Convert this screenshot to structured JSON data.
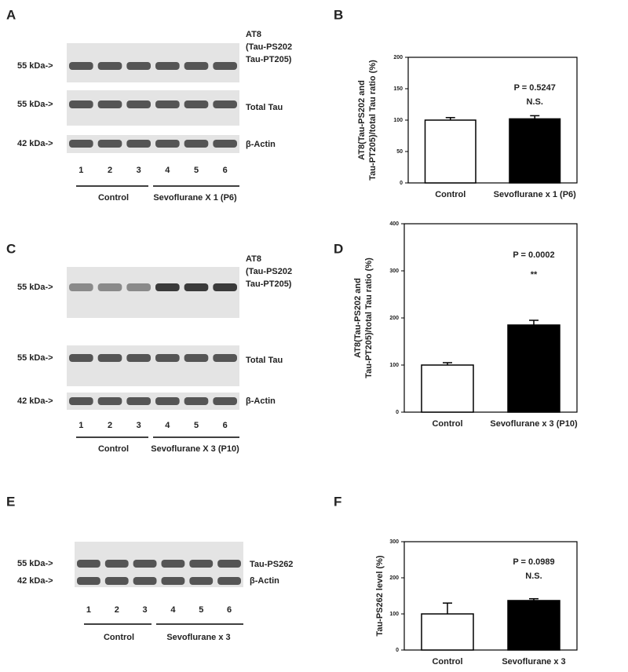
{
  "chart_data": [
    {
      "type": "bar",
      "panel": "B",
      "ylabel": [
        "AT8(Tau-PS202 and",
        "Tau-PT205)/total Tau ratio (%)"
      ],
      "categories": [
        "Control",
        "Sevoflurane x 1 (P6)"
      ],
      "values": [
        100,
        102
      ],
      "errors": [
        4,
        5
      ],
      "colors": [
        "#ffffff",
        "#000000"
      ],
      "ylim": [
        0,
        200
      ],
      "yticks": [
        0,
        50,
        100,
        150,
        200
      ],
      "annotations": [
        "P = 0.5247",
        "N.S."
      ]
    },
    {
      "type": "bar",
      "panel": "D",
      "ylabel": [
        "AT8(Tau-PS202 and",
        "Tau-PT205)/total Tau ratio (%)"
      ],
      "categories": [
        "Control",
        "Sevoflurane x 3 (P10)"
      ],
      "values": [
        100,
        185
      ],
      "errors": [
        5,
        10
      ],
      "colors": [
        "#ffffff",
        "#000000"
      ],
      "ylim": [
        0,
        400
      ],
      "yticks": [
        0,
        100,
        200,
        300,
        400
      ],
      "annotations": [
        "P = 0.0002",
        "**"
      ]
    },
    {
      "type": "bar",
      "panel": "F",
      "ylabel": [
        "Tau-PS262 level (%)"
      ],
      "categories": [
        "Control",
        "Sevoflurane x 3"
      ],
      "values": [
        100,
        137
      ],
      "errors": [
        30,
        5
      ],
      "colors": [
        "#ffffff",
        "#000000"
      ],
      "ylim": [
        0,
        300
      ],
      "yticks": [
        0,
        100,
        200,
        300
      ],
      "annotations": [
        "P = 0.0989",
        "N.S."
      ]
    }
  ],
  "blots": [
    {
      "panel": "A",
      "rows": [
        {
          "marker": "55 kDa->",
          "label": [
            "AT8",
            "(Tau-PS202",
            "Tau-PT205)"
          ]
        },
        {
          "marker": "55 kDa->",
          "label": [
            "Total Tau"
          ]
        },
        {
          "marker": "42 kDa->",
          "label": [
            "β-Actin"
          ]
        }
      ],
      "lanes": [
        "1",
        "2",
        "3",
        "4",
        "5",
        "6"
      ],
      "groups": [
        "Control",
        "Sevoflurane X 1 (P6)"
      ]
    },
    {
      "panel": "C",
      "rows": [
        {
          "marker": "55 kDa->",
          "label": [
            "AT8",
            "(Tau-PS202",
            "Tau-PT205)"
          ]
        },
        {
          "marker": "55 kDa->",
          "label": [
            "Total Tau"
          ]
        },
        {
          "marker": "42 kDa->",
          "label": [
            "β-Actin"
          ]
        }
      ],
      "lanes": [
        "1",
        "2",
        "3",
        "4",
        "5",
        "6"
      ],
      "groups": [
        "Control",
        "Sevoflurane X 3 (P10)"
      ]
    },
    {
      "panel": "E",
      "rows": [
        {
          "marker": "55 kDa->",
          "label": [
            "Tau-PS262"
          ]
        },
        {
          "marker": "42 kDa->",
          "label": [
            "β-Actin"
          ]
        }
      ],
      "lanes": [
        "1",
        "2",
        "3",
        "4",
        "5",
        "6"
      ],
      "groups": [
        "Control",
        "Sevoflurane x 3"
      ]
    }
  ]
}
